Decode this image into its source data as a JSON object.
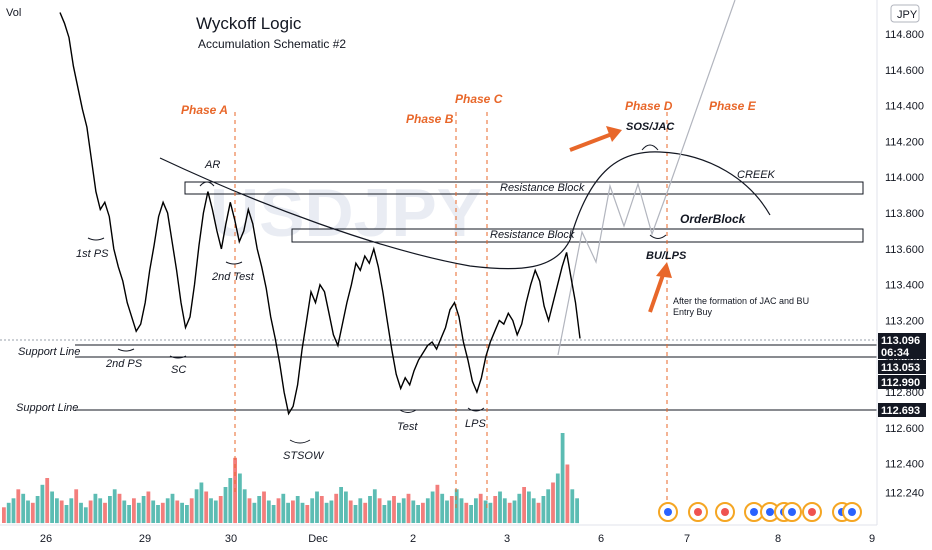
{
  "chart_data": {
    "type": "line",
    "title": "Wyckoff Logic",
    "subtitle": "Accumulation Schematic #2",
    "watermark": "USDJPY",
    "currency_badge": "JPY",
    "volume_label": "Vol",
    "ylim": [
      112.08,
      114.92
    ],
    "y_ticks": [
      112.24,
      112.4,
      112.6,
      112.8,
      113.0,
      113.2,
      113.4,
      113.6,
      113.8,
      114.0,
      114.2,
      114.4,
      114.6,
      114.8
    ],
    "y_tick_labels": [
      "112.240",
      "112.400",
      "112.600",
      "112.800",
      "113.000",
      "113.200",
      "113.400",
      "113.600",
      "113.800",
      "114.000",
      "114.200",
      "114.400",
      "114.600",
      "114.800"
    ],
    "x_ticks": [
      "26",
      "29",
      "30",
      "Dec",
      "2",
      "3",
      "6",
      "7",
      "8",
      "9"
    ],
    "price_series": [
      [
        0,
        114.92
      ],
      [
        4,
        114.86
      ],
      [
        8,
        114.78
      ],
      [
        12,
        114.62
      ],
      [
        16,
        114.5
      ],
      [
        20,
        114.38
      ],
      [
        24,
        114.28
      ],
      [
        28,
        114.1
      ],
      [
        32,
        113.92
      ],
      [
        36,
        113.82
      ],
      [
        40,
        113.86
      ],
      [
        44,
        113.78
      ],
      [
        48,
        113.6
      ],
      [
        52,
        113.5
      ],
      [
        56,
        113.42
      ],
      [
        60,
        113.3
      ],
      [
        64,
        113.22
      ],
      [
        68,
        113.14
      ],
      [
        72,
        113.18
      ],
      [
        76,
        113.3
      ],
      [
        80,
        113.48
      ],
      [
        84,
        113.62
      ],
      [
        88,
        113.78
      ],
      [
        92,
        113.86
      ],
      [
        96,
        113.8
      ],
      [
        100,
        113.64
      ],
      [
        104,
        113.48
      ],
      [
        108,
        113.3
      ],
      [
        112,
        113.16
      ],
      [
        116,
        113.22
      ],
      [
        120,
        113.4
      ],
      [
        124,
        113.62
      ],
      [
        128,
        113.8
      ],
      [
        132,
        113.92
      ],
      [
        136,
        113.82
      ],
      [
        140,
        113.7
      ],
      [
        144,
        113.6
      ],
      [
        148,
        113.74
      ],
      [
        152,
        113.86
      ],
      [
        156,
        113.76
      ],
      [
        160,
        113.64
      ],
      [
        164,
        113.7
      ],
      [
        168,
        113.82
      ],
      [
        172,
        113.74
      ],
      [
        176,
        113.6
      ],
      [
        180,
        113.5
      ],
      [
        184,
        113.38
      ],
      [
        188,
        113.22
      ],
      [
        192,
        113.1
      ],
      [
        196,
        112.96
      ],
      [
        200,
        112.8
      ],
      [
        204,
        112.68
      ],
      [
        208,
        112.72
      ],
      [
        212,
        112.84
      ],
      [
        216,
        113.04
      ],
      [
        220,
        113.2
      ],
      [
        224,
        113.36
      ],
      [
        228,
        113.3
      ],
      [
        232,
        113.4
      ],
      [
        236,
        113.36
      ],
      [
        240,
        113.24
      ],
      [
        244,
        113.12
      ],
      [
        248,
        113.06
      ],
      [
        252,
        113.18
      ],
      [
        256,
        113.3
      ],
      [
        260,
        113.4
      ],
      [
        264,
        113.52
      ],
      [
        268,
        113.48
      ],
      [
        272,
        113.56
      ],
      [
        276,
        113.52
      ],
      [
        280,
        113.6
      ],
      [
        284,
        113.5
      ],
      [
        288,
        113.36
      ],
      [
        292,
        113.2
      ],
      [
        296,
        113.04
      ],
      [
        300,
        112.9
      ],
      [
        304,
        112.82
      ],
      [
        308,
        112.88
      ],
      [
        312,
        112.84
      ],
      [
        316,
        112.92
      ],
      [
        320,
        112.98
      ],
      [
        324,
        113.02
      ],
      [
        328,
        113.06
      ],
      [
        332,
        113.08
      ],
      [
        336,
        113.04
      ],
      [
        340,
        113.1
      ],
      [
        344,
        113.16
      ],
      [
        348,
        113.26
      ],
      [
        352,
        113.3
      ],
      [
        356,
        113.22
      ],
      [
        360,
        113.08
      ],
      [
        364,
        112.98
      ],
      [
        368,
        112.86
      ],
      [
        372,
        112.8
      ],
      [
        376,
        112.88
      ],
      [
        380,
        113.0
      ],
      [
        384,
        113.08
      ],
      [
        388,
        113.14
      ],
      [
        392,
        113.2
      ],
      [
        396,
        113.18
      ],
      [
        400,
        113.24
      ],
      [
        404,
        113.2
      ],
      [
        408,
        113.12
      ],
      [
        412,
        113.18
      ],
      [
        416,
        113.3
      ],
      [
        420,
        113.4
      ],
      [
        424,
        113.48
      ],
      [
        428,
        113.42
      ],
      [
        432,
        113.28
      ],
      [
        436,
        113.2
      ],
      [
        440,
        113.3
      ],
      [
        444,
        113.4
      ],
      [
        448,
        113.5
      ],
      [
        452,
        113.58
      ],
      [
        456,
        113.44
      ],
      [
        460,
        113.3
      ],
      [
        464,
        113.1
      ]
    ],
    "volume_series": [
      14,
      18,
      22,
      30,
      26,
      20,
      18,
      24,
      34,
      40,
      28,
      22,
      20,
      16,
      22,
      30,
      18,
      14,
      20,
      26,
      22,
      18,
      24,
      30,
      26,
      20,
      16,
      22,
      18,
      24,
      28,
      20,
      16,
      18,
      22,
      26,
      20,
      18,
      16,
      22,
      30,
      36,
      28,
      22,
      20,
      24,
      32,
      40,
      58,
      44,
      30,
      22,
      18,
      24,
      28,
      20,
      16,
      22,
      26,
      18,
      20,
      24,
      18,
      16,
      22,
      28,
      24,
      18,
      20,
      26,
      32,
      28,
      20,
      16,
      22,
      18,
      24,
      30,
      22,
      16,
      20,
      24,
      18,
      22,
      26,
      20,
      16,
      18,
      22,
      28,
      34,
      26,
      20,
      24,
      30,
      22,
      18,
      16,
      22,
      26,
      20,
      18,
      24,
      28,
      22,
      18,
      20,
      26,
      32,
      28,
      22,
      18,
      24,
      30,
      36,
      44,
      80,
      52,
      30,
      22
    ],
    "support_lines": [
      {
        "label": "Support Line",
        "value": 112.99
      },
      {
        "label": "Support Line",
        "value": 112.693
      }
    ],
    "resistance_blocks": [
      {
        "label": "Resistance Block",
        "low": 113.93,
        "high": 113.99
      },
      {
        "label": "Resistance Block",
        "low": 113.64,
        "high": 113.72
      }
    ],
    "price_badges": [
      {
        "value": "113.096",
        "color": "#131722"
      },
      {
        "value": "06:34",
        "color": "#131722"
      },
      {
        "value": "113.053",
        "color": "#131722"
      },
      {
        "value": "112.990",
        "color": "#131722"
      },
      {
        "value": "112.693",
        "color": "#131722"
      }
    ],
    "phase_labels": [
      "Phase A",
      "Phase B",
      "Phase C",
      "Phase D",
      "Phase E"
    ],
    "wyckoff_labels": [
      "AR",
      "1st PS",
      "2nd PS",
      "SC",
      "2nd Test",
      "STSOW",
      "Test",
      "LPS",
      "SOS/JAC",
      "BU/LPS",
      "CREEK",
      "OrderBlock"
    ],
    "note_lines": [
      "After the formation of JAC and BU",
      "Entry Buy"
    ],
    "colors": {
      "price": "#000000",
      "projection": "#b2b5be",
      "phase": "#e8672a",
      "volume_up": "#26a69a",
      "volume_down": "#ef5350",
      "grid": "#f0f3fa",
      "arrow": "#e8672a"
    }
  }
}
